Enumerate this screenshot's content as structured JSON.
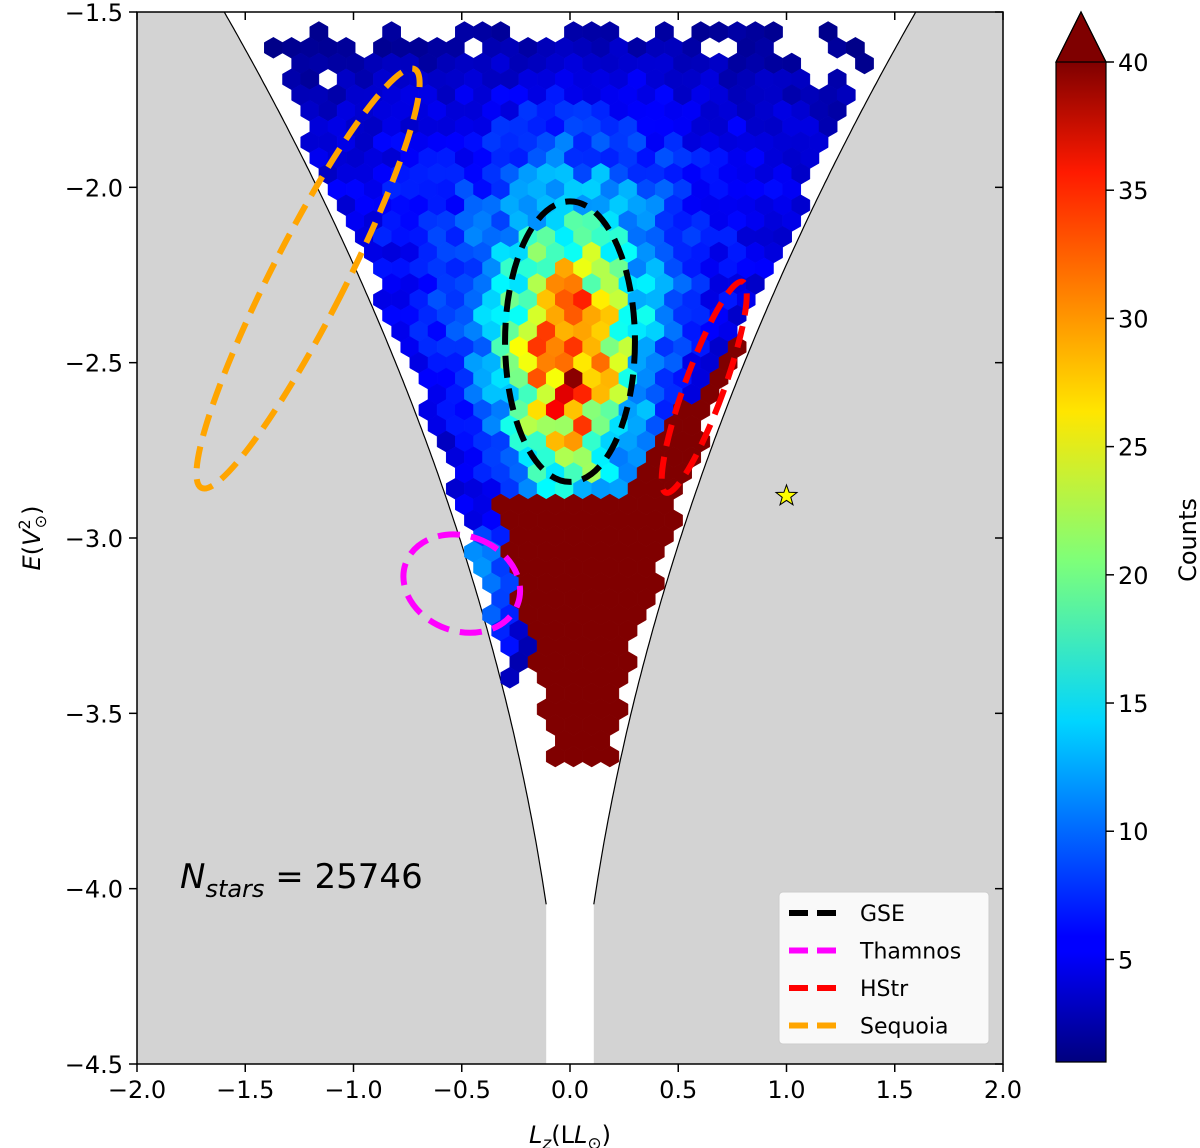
{
  "chart_data": {
    "type": "heatmap",
    "subtype": "hexbin",
    "xlabel_main": "L",
    "xlabel_sub": "z",
    "xlabel_paren": "(L",
    "xlabel_close": ")",
    "ylabel": "E(V",
    "ylabel_sup": "2",
    "ylabel_close": ")",
    "xlim": [
      -2.0,
      2.0
    ],
    "ylim": [
      -4.5,
      -1.5
    ],
    "xticks": [
      "−2.0",
      "−1.5",
      "−1.0",
      "−0.5",
      "0.0",
      "0.5",
      "1.0",
      "1.5",
      "2.0"
    ],
    "xtick_values": [
      -2.0,
      -1.5,
      -1.0,
      -0.5,
      0.0,
      0.5,
      1.0,
      1.5,
      2.0
    ],
    "yticks": [
      "−1.5",
      "−2.0",
      "−2.5",
      "−3.0",
      "−3.5",
      "−4.0",
      "−4.5"
    ],
    "ytick_values": [
      -1.5,
      -2.0,
      -2.5,
      -3.0,
      -3.5,
      -4.0,
      -4.5
    ],
    "annotation": {
      "label": "N",
      "sub": "stars",
      "eq": " = 25746"
    },
    "colorbar": {
      "label": "Counts",
      "min": 1,
      "max": 40,
      "ticks": [
        "5",
        "10",
        "15",
        "20",
        "25",
        "30",
        "35",
        "40"
      ],
      "tick_values": [
        5,
        10,
        15,
        20,
        25,
        30,
        35,
        40
      ],
      "colormap": "jet",
      "extend": "max"
    },
    "grid": false,
    "legend_position": "bottom-right",
    "legend": [
      {
        "name": "GSE",
        "color": "#000000"
      },
      {
        "name": "Thamnos",
        "color": "#ff00ff"
      },
      {
        "name": "HStr",
        "color": "#ff0000"
      },
      {
        "name": "Sequoia",
        "color": "#ffa500"
      }
    ],
    "ellipses": [
      {
        "name": "GSE",
        "cx": 0.0,
        "cy": -2.44,
        "rx": 0.3,
        "ry": 0.4,
        "angle_deg": 0,
        "color": "#000000"
      },
      {
        "name": "Thamnos",
        "cx": -0.5,
        "cy": -3.13,
        "rx": 0.22,
        "ry": 0.17,
        "angle_deg": -70,
        "color": "#ff00ff"
      },
      {
        "name": "HStr",
        "cx": 0.62,
        "cy": -2.57,
        "rx": 0.09,
        "ry": 0.32,
        "angle_deg": 20,
        "color": "#ff0000"
      },
      {
        "name": "Sequoia",
        "cx": -1.21,
        "cy": -2.26,
        "rx": 0.17,
        "ry": 0.67,
        "angle_deg": 27,
        "color": "#ffa500"
      }
    ],
    "sun_marker": {
      "x": 1.0,
      "y": -2.88,
      "color": "#ffff00"
    },
    "forbidden_region_color": "#d3d3d3"
  }
}
